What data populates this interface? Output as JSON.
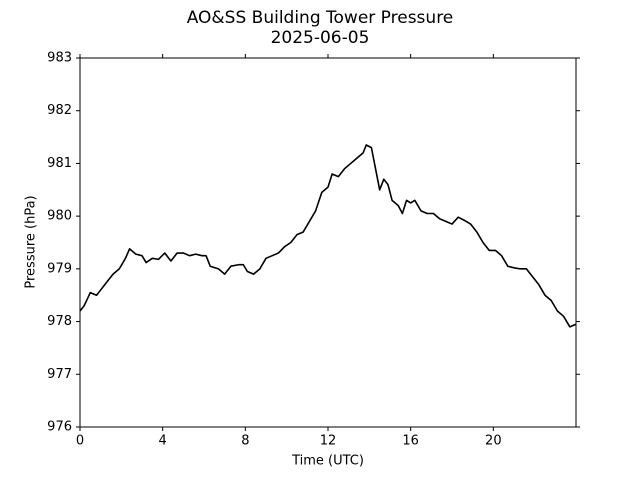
{
  "chart_data": {
    "type": "line",
    "title": "AO&SS Building Tower Pressure",
    "subtitle": "2025-06-05",
    "x_label": "Time (UTC)",
    "y_label": "Pressure (hPa)",
    "xlim": [
      0,
      24
    ],
    "xticks": [
      0,
      4,
      8,
      12,
      16,
      20
    ],
    "ylim": [
      976,
      983
    ],
    "yticks": [
      976,
      977,
      978,
      979,
      980,
      981,
      982,
      983
    ],
    "grid": false,
    "series": [
      {
        "name": "Pressure",
        "color": "#000000",
        "x": [
          0,
          0.2,
          0.5,
          0.8,
          1.0,
          1.3,
          1.6,
          1.9,
          2.2,
          2.4,
          2.7,
          3.0,
          3.2,
          3.5,
          3.8,
          4.1,
          4.4,
          4.7,
          5.0,
          5.3,
          5.6,
          5.9,
          6.1,
          6.3,
          6.7,
          7.0,
          7.3,
          7.7,
          7.9,
          8.1,
          8.4,
          8.7,
          9.0,
          9.3,
          9.6,
          9.9,
          10.2,
          10.5,
          10.8,
          11.1,
          11.4,
          11.7,
          12.0,
          12.2,
          12.5,
          12.8,
          13.1,
          13.4,
          13.7,
          13.85,
          14.1,
          14.3,
          14.5,
          14.7,
          14.9,
          15.1,
          15.4,
          15.6,
          15.8,
          16.0,
          16.2,
          16.5,
          16.8,
          17.1,
          17.4,
          17.7,
          18.0,
          18.3,
          18.6,
          18.9,
          19.2,
          19.5,
          19.8,
          20.1,
          20.4,
          20.7,
          21.0,
          21.3,
          21.6,
          21.9,
          22.2,
          22.5,
          22.8,
          23.1,
          23.4,
          23.7,
          24.0
        ],
        "values": [
          978.2,
          978.3,
          978.55,
          978.5,
          978.6,
          978.75,
          978.9,
          979.0,
          979.2,
          979.38,
          979.28,
          979.25,
          979.12,
          979.2,
          979.18,
          979.3,
          979.15,
          979.3,
          979.3,
          979.25,
          979.28,
          979.25,
          979.25,
          979.05,
          979.0,
          978.9,
          979.05,
          979.08,
          979.08,
          978.95,
          978.9,
          979.0,
          979.2,
          979.25,
          979.3,
          979.42,
          979.5,
          979.65,
          979.7,
          979.9,
          980.1,
          980.45,
          980.55,
          980.8,
          980.75,
          980.9,
          981.0,
          981.1,
          981.2,
          981.35,
          981.3,
          980.9,
          980.5,
          980.7,
          980.6,
          980.3,
          980.2,
          980.05,
          980.3,
          980.25,
          980.3,
          980.1,
          980.05,
          980.05,
          979.95,
          979.9,
          979.85,
          979.98,
          979.92,
          979.85,
          979.7,
          979.5,
          979.35,
          979.35,
          979.25,
          979.05,
          979.02,
          979.0,
          979.0,
          978.85,
          978.7,
          978.5,
          978.4,
          978.2,
          978.1,
          977.9,
          977.95
        ]
      }
    ]
  }
}
